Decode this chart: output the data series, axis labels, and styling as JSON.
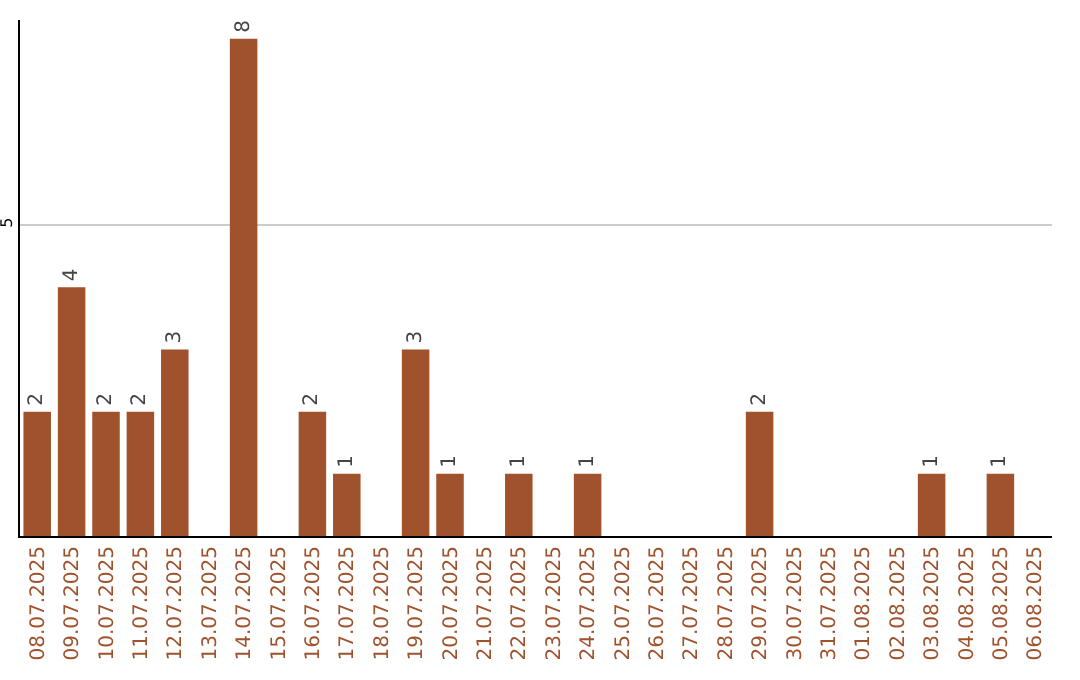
{
  "chart_data": {
    "type": "bar",
    "categories": [
      "08.07.2025",
      "09.07.2025",
      "10.07.2025",
      "11.07.2025",
      "12.07.2025",
      "13.07.2025",
      "14.07.2025",
      "15.07.2025",
      "16.07.2025",
      "17.07.2025",
      "18.07.2025",
      "19.07.2025",
      "20.07.2025",
      "21.07.2025",
      "22.07.2025",
      "23.07.2025",
      "24.07.2025",
      "25.07.2025",
      "26.07.2025",
      "27.07.2025",
      "28.07.2025",
      "29.07.2025",
      "30.07.2025",
      "31.07.2025",
      "01.08.2025",
      "02.08.2025",
      "03.08.2025",
      "04.08.2025",
      "05.08.2025",
      "06.08.2025"
    ],
    "values": [
      2,
      4,
      2,
      2,
      3,
      0,
      8,
      0,
      2,
      1,
      0,
      3,
      1,
      0,
      1,
      0,
      1,
      0,
      0,
      0,
      0,
      2,
      0,
      0,
      0,
      0,
      1,
      0,
      1,
      0
    ],
    "value_labels": [
      "2",
      "4",
      "2",
      "2",
      "3",
      null,
      "8",
      null,
      "2",
      "1",
      null,
      "3",
      "1",
      null,
      "1",
      null,
      "1",
      null,
      null,
      null,
      null,
      "2",
      null,
      null,
      null,
      null,
      "1",
      null,
      "1",
      null
    ],
    "color": "#a0522d",
    "ylim": [
      0,
      8.3
    ],
    "yticks": [
      5
    ],
    "grid": "y"
  }
}
